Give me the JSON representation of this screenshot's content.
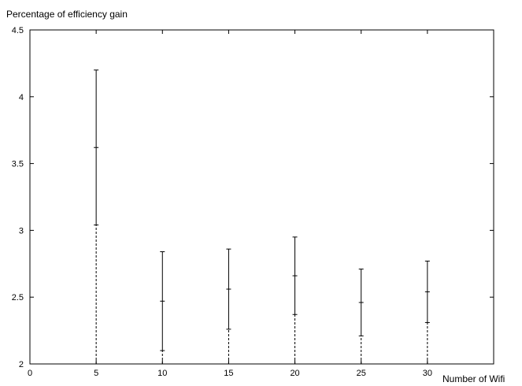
{
  "chart_data": {
    "type": "errorbar",
    "title": "",
    "ylabel": "Percentage of efficiency gain",
    "xlabel": "Number of Wifi",
    "xlim": [
      0,
      35
    ],
    "ylim": [
      2,
      4.5
    ],
    "x_ticks": [
      0,
      5,
      10,
      15,
      20,
      25,
      30
    ],
    "y_ticks": [
      2,
      2.5,
      3,
      3.5,
      4,
      4.5
    ],
    "grid": false,
    "series": [
      {
        "x": [
          5,
          10,
          15,
          20,
          25,
          30
        ],
        "mean": [
          3.62,
          2.47,
          2.56,
          2.66,
          2.46,
          2.54
        ],
        "low": [
          3.04,
          2.1,
          2.26,
          2.37,
          2.21,
          2.31
        ],
        "high": [
          4.2,
          2.84,
          2.86,
          2.95,
          2.71,
          2.77
        ]
      }
    ]
  }
}
